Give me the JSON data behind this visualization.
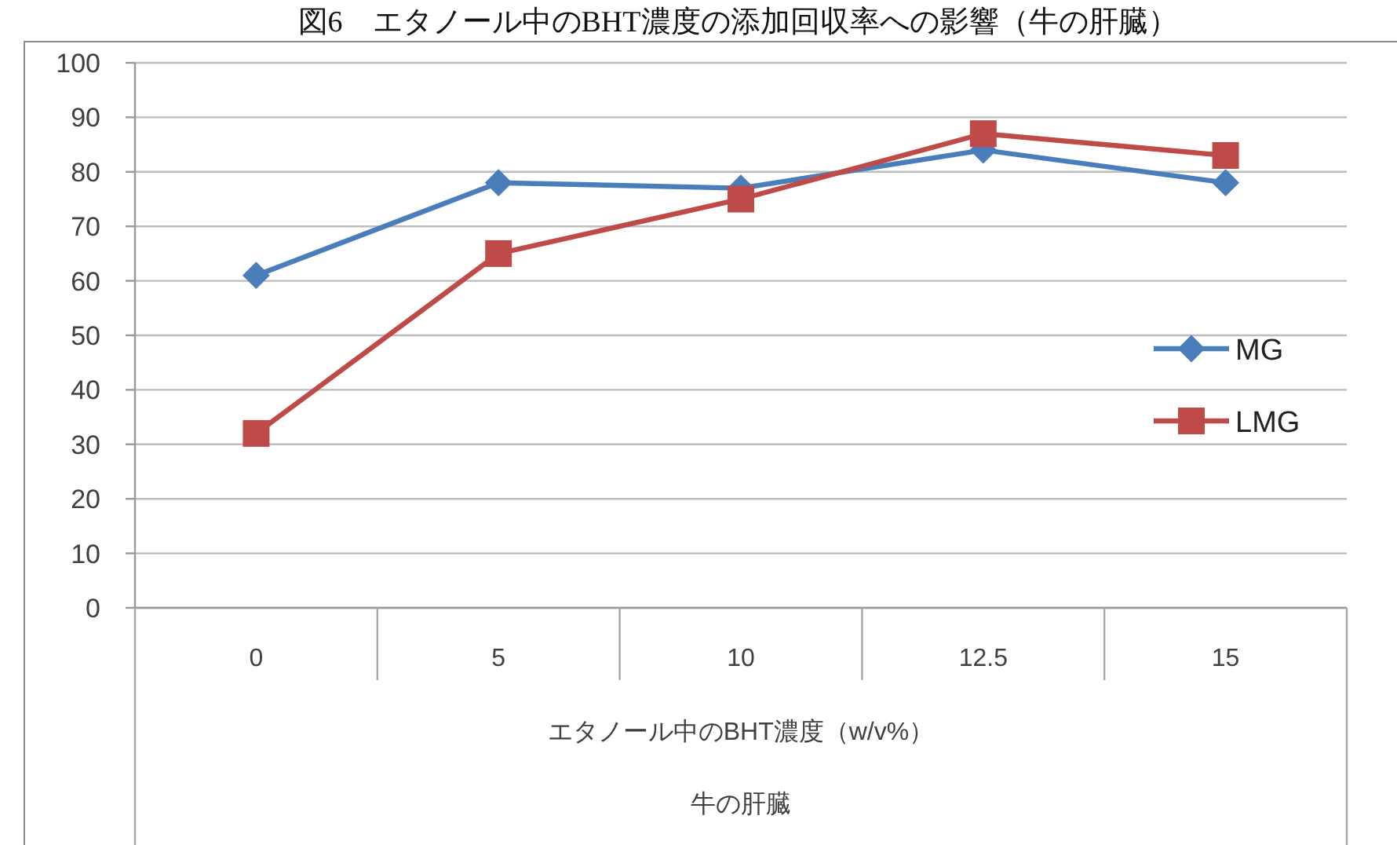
{
  "chart_data": {
    "type": "line",
    "title": "図6　エタノール中のBHT濃度の添加回収率への影響（牛の肝臓）",
    "categories": [
      "0",
      "5",
      "10",
      "12.5",
      "15"
    ],
    "xlabel": "エタノール中のBHT濃度（w/v%）",
    "annotations": [
      "牛の肝臓"
    ],
    "series": [
      {
        "name": "MG",
        "color": "#4a7ebb",
        "marker": "diamond",
        "values": [
          61,
          78,
          77,
          84,
          78
        ]
      },
      {
        "name": "LMG",
        "color": "#be4b48",
        "marker": "square",
        "values": [
          32,
          65,
          75,
          87,
          83
        ]
      }
    ],
    "ylim": [
      0,
      100
    ],
    "yticks": [
      0,
      10,
      20,
      30,
      40,
      50,
      60,
      70,
      80,
      90,
      100
    ],
    "grid": "y",
    "legend": "right"
  }
}
